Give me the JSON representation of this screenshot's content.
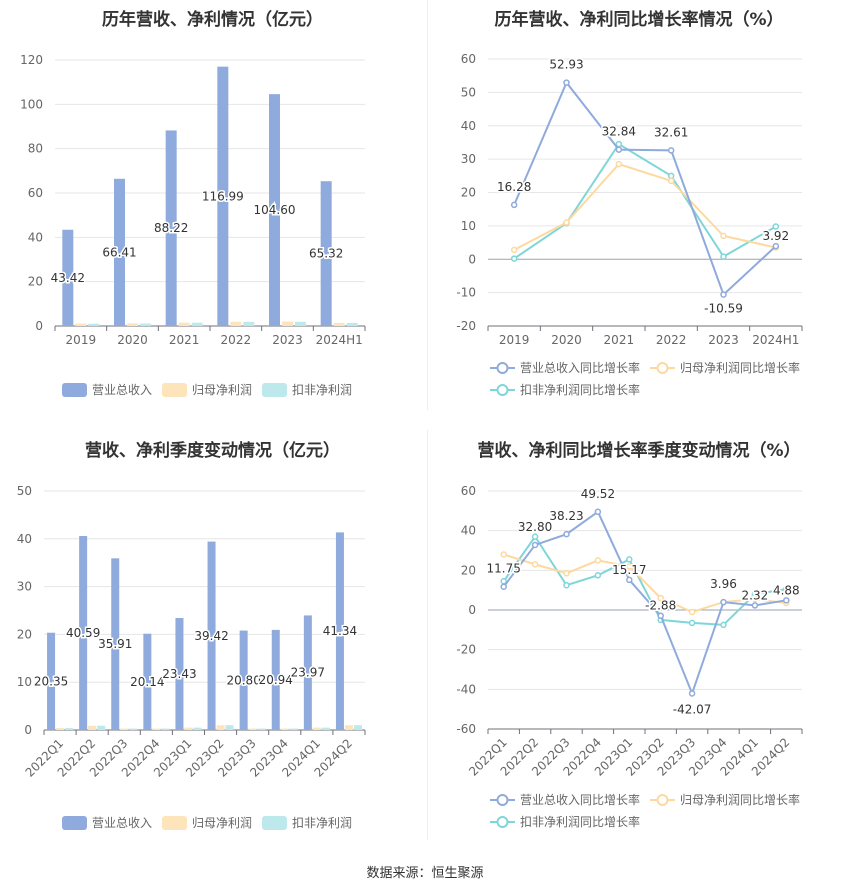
{
  "source": "数据来源：恒生聚源",
  "colors": {
    "revenue": "#8faadc",
    "netprofit": "#fde4bb",
    "deducted": "#bde8ec",
    "revenue_line": "#8faadc",
    "netprofit_line": "#fdd9a0",
    "deducted_line": "#7fd6d8"
  },
  "chart_data": [
    {
      "type": "bar",
      "title": "历年营收、净利情况（亿元）",
      "categories": [
        "2019",
        "2020",
        "2021",
        "2022",
        "2023",
        "2024H1"
      ],
      "ylim": [
        0,
        120
      ],
      "yticks": [
        "0",
        "20",
        "40",
        "60",
        "80",
        "100",
        "120"
      ],
      "series": [
        {
          "name": "营业总收入",
          "values": [
            43.42,
            66.41,
            88.22,
            116.99,
            104.6,
            65.32
          ],
          "labels": [
            "43.42",
            "66.41",
            "88.22",
            "116.99",
            "104.60",
            "65.32"
          ]
        },
        {
          "name": "归母净利润",
          "values": [
            1.1,
            1.2,
            1.5,
            1.9,
            2.0,
            1.4
          ]
        },
        {
          "name": "扣非净利润",
          "values": [
            1.0,
            1.1,
            1.5,
            1.9,
            1.9,
            1.4
          ]
        }
      ],
      "legend": "bottom"
    },
    {
      "type": "line",
      "title": "历年营收、净利同比增长率情况（%）",
      "categories": [
        "2019",
        "2020",
        "2021",
        "2022",
        "2023",
        "2024H1"
      ],
      "ylim": [
        -20,
        60
      ],
      "yticks": [
        "-20",
        "-10",
        "0",
        "10",
        "20",
        "30",
        "40",
        "50",
        "60"
      ],
      "series": [
        {
          "name": "营业总收入同比增长率",
          "values": [
            16.28,
            52.93,
            32.84,
            32.61,
            -10.59,
            3.92
          ],
          "labels": [
            "16.28",
            "52.93",
            "32.84",
            "32.61",
            "-10.59",
            "3.92"
          ]
        },
        {
          "name": "归母净利润同比增长率",
          "values": [
            2.8,
            11.0,
            28.5,
            23.5,
            7.0,
            3.5
          ]
        },
        {
          "name": "扣非净利润同比增长率",
          "values": [
            0.2,
            10.8,
            34.5,
            25.0,
            0.8,
            9.8
          ]
        }
      ],
      "legend": "bottom"
    },
    {
      "type": "bar",
      "title": "营收、净利季度变动情况（亿元）",
      "categories": [
        "2022Q1",
        "2022Q2",
        "2022Q3",
        "2022Q4",
        "2023Q1",
        "2023Q2",
        "2023Q3",
        "2023Q4",
        "2024Q1",
        "2024Q2"
      ],
      "ylim": [
        0,
        50
      ],
      "yticks": [
        "0",
        "10",
        "20",
        "30",
        "40",
        "50"
      ],
      "series": [
        {
          "name": "营业总收入",
          "values": [
            20.35,
            40.59,
            35.91,
            20.14,
            23.43,
            39.42,
            20.8,
            20.94,
            23.97,
            41.34
          ],
          "labels": [
            "20.35",
            "40.59",
            "35.91",
            "20.14",
            "23.43",
            "39.42",
            "20.80",
            "20.94",
            "23.97",
            "41.34"
          ]
        },
        {
          "name": "归母净利润",
          "values": [
            0.4,
            0.9,
            0.3,
            0.3,
            0.5,
            1.0,
            0.3,
            0.3,
            0.5,
            1.0
          ]
        },
        {
          "name": "扣非净利润",
          "values": [
            0.4,
            0.9,
            0.3,
            0.3,
            0.5,
            1.0,
            0.3,
            0.3,
            0.5,
            1.0
          ]
        }
      ],
      "legend": "bottom"
    },
    {
      "type": "line",
      "title": "营收、净利同比增长率季度变动情况（%）",
      "categories": [
        "2022Q1",
        "2022Q2",
        "2022Q3",
        "2022Q4",
        "2023Q1",
        "2023Q2",
        "2023Q3",
        "2023Q4",
        "2024Q1",
        "2024Q2"
      ],
      "ylim": [
        -60,
        60
      ],
      "yticks": [
        "-60",
        "-40",
        "-20",
        "0",
        "20",
        "40",
        "60"
      ],
      "series": [
        {
          "name": "营业总收入同比增长率",
          "values": [
            11.75,
            32.8,
            38.23,
            49.52,
            15.17,
            -2.88,
            -42.07,
            3.96,
            2.32,
            4.88
          ],
          "labels": [
            "11.75",
            "32.80",
            "38.23",
            "49.52",
            "15.17",
            "-2.88",
            "-42.07",
            "3.96",
            "2.32",
            "4.88"
          ]
        },
        {
          "name": "归母净利润同比增长率",
          "values": [
            28.0,
            23.0,
            18.5,
            25.0,
            22.0,
            6.0,
            -1.0,
            4.0,
            5.5,
            3.5
          ]
        },
        {
          "name": "扣非净利润同比增长率",
          "values": [
            14.5,
            37.0,
            12.5,
            17.5,
            25.5,
            -5.0,
            -6.5,
            -7.5,
            8.0,
            10.5
          ]
        }
      ],
      "legend": "bottom"
    }
  ]
}
